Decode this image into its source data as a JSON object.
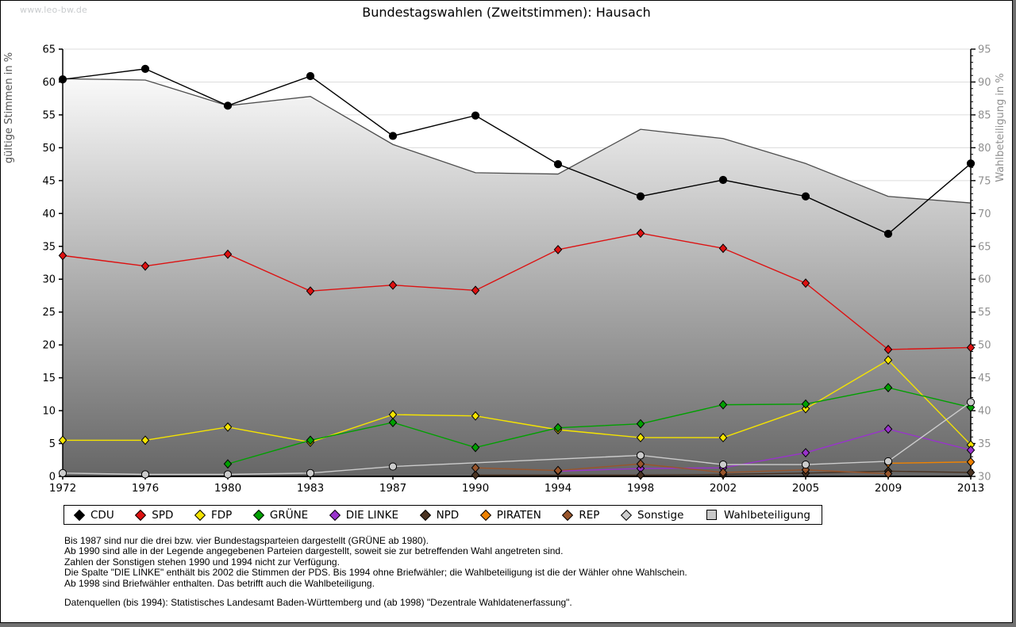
{
  "page": {
    "watermark": "www.leo-bw.de",
    "title": "Bundestagswahlen (Zweitstimmen): Hausach"
  },
  "chart_data": {
    "type": "line",
    "title": "Bundestagswahlen (Zweitstimmen): Hausach",
    "xlabel": "",
    "ylabel_left": "gültige Stimmen in %",
    "ylabel_right": "Wahlbeteiligung in %",
    "ylim_left": [
      0,
      65
    ],
    "ylim_right": [
      30,
      95
    ],
    "grid": true,
    "legend_position": "bottom",
    "x_categories": [
      1972,
      1976,
      1980,
      1983,
      1987,
      1990,
      1994,
      1998,
      2002,
      2005,
      2009,
      2013
    ],
    "series": [
      {
        "name": "CDU",
        "color": "#000000",
        "marker": "circle",
        "axis": "left",
        "values": [
          60.4,
          62.0,
          56.4,
          60.9,
          51.8,
          54.9,
          47.5,
          42.6,
          45.1,
          42.6,
          36.9,
          47.6
        ]
      },
      {
        "name": "SPD",
        "color": "#dd1111",
        "marker": "diamond",
        "axis": "left",
        "values": [
          33.6,
          32.0,
          33.8,
          28.2,
          29.1,
          28.3,
          34.5,
          37.0,
          34.7,
          29.4,
          19.3,
          19.6
        ]
      },
      {
        "name": "FDP",
        "color": "#f5e400",
        "marker": "diamond",
        "axis": "left",
        "values": [
          5.5,
          5.5,
          7.5,
          5.2,
          9.4,
          9.2,
          7.1,
          5.9,
          5.9,
          10.3,
          17.7,
          4.8
        ]
      },
      {
        "name": "GRÜNE",
        "color": "#00a000",
        "marker": "diamond",
        "axis": "left",
        "values": [
          null,
          null,
          1.9,
          5.5,
          8.2,
          4.4,
          7.4,
          8.0,
          10.9,
          11.0,
          13.5,
          10.5
        ]
      },
      {
        "name": "DIE LINKE",
        "color": "#9933cc",
        "marker": "diamond",
        "axis": "left",
        "values": [
          null,
          null,
          null,
          null,
          null,
          null,
          0.8,
          1.2,
          1.3,
          3.6,
          7.2,
          4.0
        ]
      },
      {
        "name": "NPD",
        "color": "#4a3322",
        "marker": "diamond",
        "axis": "left",
        "values": [
          null,
          null,
          null,
          null,
          null,
          0.2,
          null,
          0.2,
          0.3,
          0.5,
          0.8,
          0.6
        ]
      },
      {
        "name": "PIRATEN",
        "color": "#ef8200",
        "marker": "diamond",
        "axis": "left",
        "values": [
          null,
          null,
          null,
          null,
          null,
          null,
          null,
          null,
          null,
          null,
          2.0,
          2.2
        ]
      },
      {
        "name": "REP",
        "color": "#99552b",
        "marker": "diamond",
        "axis": "left",
        "values": [
          null,
          null,
          null,
          null,
          null,
          1.3,
          0.9,
          1.9,
          0.6,
          1.0,
          0.4,
          null
        ]
      },
      {
        "name": "Sonstige",
        "color": "#cccccc",
        "marker": "circle",
        "axis": "left",
        "values": [
          0.5,
          0.3,
          0.3,
          0.5,
          1.5,
          null,
          null,
          3.2,
          1.8,
          1.8,
          2.3,
          11.3
        ]
      },
      {
        "name": "Wahlbeteiligung",
        "color": "#4d4d4d",
        "marker": "none",
        "type": "area",
        "axis": "right",
        "values": [
          90.5,
          90.3,
          86.4,
          87.8,
          80.5,
          76.2,
          76.0,
          82.8,
          81.4,
          77.6,
          72.6,
          71.6
        ]
      }
    ],
    "colors": {
      "gridline": "#dcdcdc",
      "area_fill_top": "#fafafa",
      "area_fill_bottom": "#666666",
      "area_edge": "#4d4d4d",
      "right_axis_text": "#909090",
      "left_axis_title": "#555555"
    }
  },
  "notes": [
    "Bis 1987 sind nur die drei bzw. vier Bundestagsparteien dargestellt (GRÜNE ab 1980).",
    "Ab 1990 sind alle in der Legende angegebenen Parteien dargestellt, soweit sie zur betreffenden Wahl angetreten sind.",
    "Zahlen der Sonstigen stehen 1990 und 1994 nicht zur Verfügung.",
    "Die Spalte \"DIE LINKE\" enthält bis 2002 die Stimmen der PDS. Bis 1994 ohne Briefwähler; die Wahlbeteiligung ist die der Wähler ohne Wahlschein.",
    "Ab 1998 sind Briefwähler enthalten. Das betrifft auch die Wahlbeteiligung."
  ],
  "source": "Datenquellen (bis 1994): Statistisches Landesamt Baden-Württemberg und (ab 1998) \"Dezentrale Wahldatenerfassung\"."
}
